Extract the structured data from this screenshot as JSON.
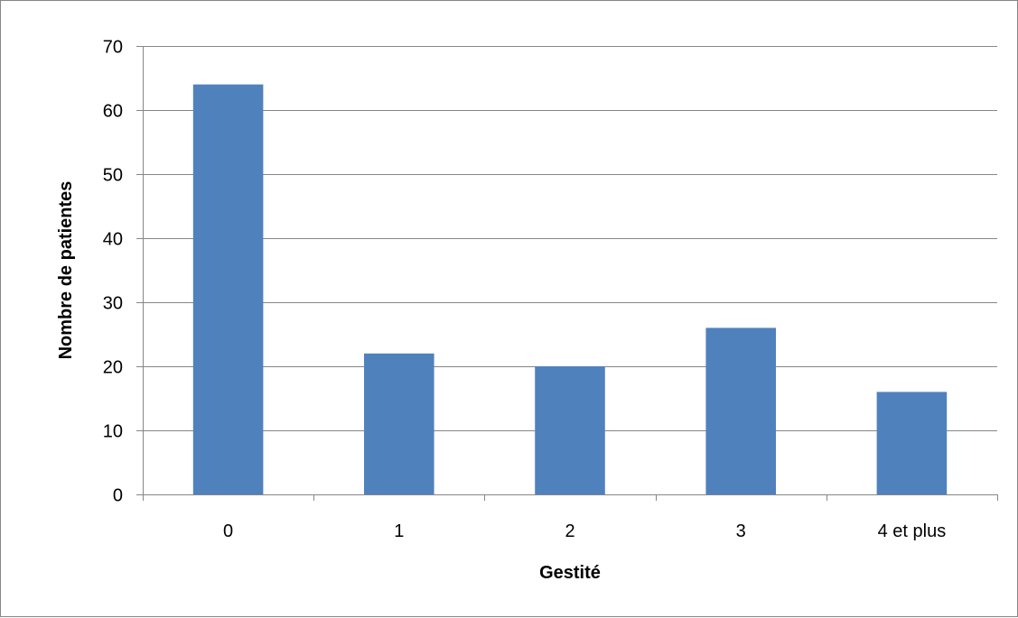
{
  "chart_data": {
    "type": "bar",
    "title": "",
    "xlabel": "Gestité",
    "ylabel": "Nombre de patientes",
    "categories": [
      "0",
      "1",
      "2",
      "3",
      "4 et plus"
    ],
    "values": [
      64,
      22,
      20,
      26,
      16
    ],
    "ylim": [
      0,
      70
    ],
    "yticks": [
      "0",
      "10",
      "20",
      "30",
      "40",
      "50",
      "60",
      "70"
    ],
    "grid": true,
    "legend": "none",
    "bar_color": "#4F81BD",
    "grid_color": "#868686"
  }
}
